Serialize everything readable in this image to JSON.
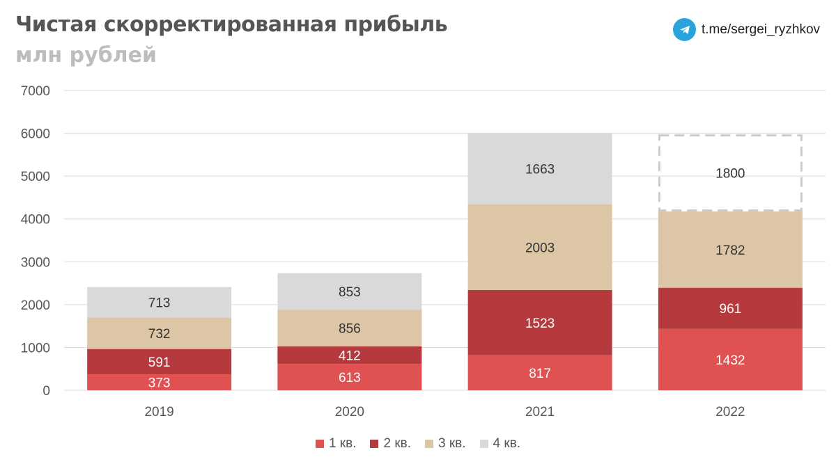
{
  "header": {
    "title": "Чистая скорректированная прибыль",
    "subtitle": "млн рублей",
    "link": "t.me/sergei_ryzhkov"
  },
  "colors": {
    "q1": "#e05252",
    "q2": "#b63a3d",
    "q3": "#dcc6a6",
    "q4": "#d9d9d9",
    "forecast_border": "#cccccc",
    "grid": "#d9d9d9",
    "telegram": "#2aa3dc"
  },
  "chart_data": {
    "type": "bar",
    "stacked": true,
    "categories": [
      "2019",
      "2020",
      "2021",
      "2022"
    ],
    "series": [
      {
        "name": "1 кв.",
        "values": [
          373,
          613,
          817,
          1432
        ],
        "label_color": "#ffffff"
      },
      {
        "name": "2 кв.",
        "values": [
          591,
          412,
          1523,
          961
        ],
        "label_color": "#ffffff"
      },
      {
        "name": "3 кв.",
        "values": [
          732,
          856,
          2003,
          1782
        ],
        "label_color": "#333333"
      },
      {
        "name": "4 кв.",
        "values": [
          713,
          853,
          1663,
          1800
        ],
        "label_color": "#333333",
        "forecast_index": 3
      }
    ],
    "yticks": [
      "0",
      "1000",
      "2000",
      "3000",
      "4000",
      "5000",
      "6000",
      "7000"
    ],
    "ylim": [
      0,
      7000
    ],
    "grid": true,
    "legend_position": "bottom"
  }
}
